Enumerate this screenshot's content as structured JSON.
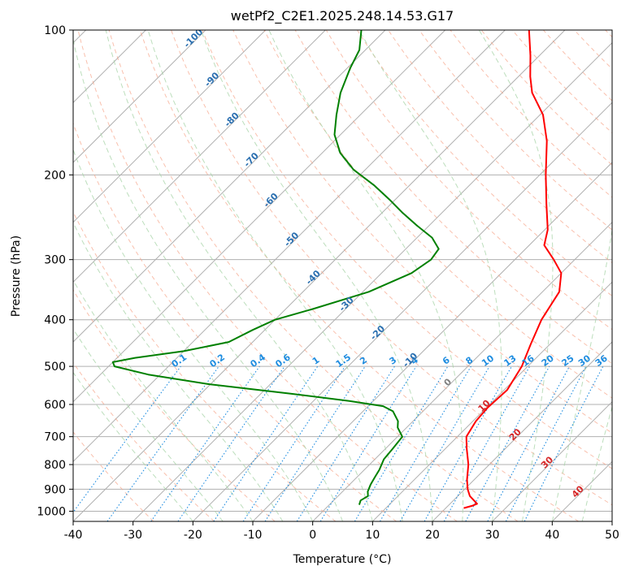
{
  "chart_data": {
    "type": "line",
    "title": "wetPf2_C2E1.2025.248.14.53.G17",
    "xlabel": "Temperature (°C)",
    "ylabel": "Pressure (hPa)",
    "xlim": [
      -40,
      50
    ],
    "ylim": [
      1050,
      100
    ],
    "y_scale": "log",
    "skew": "45° skew-T log-p",
    "grid": true,
    "x_ticks": [
      -40,
      -30,
      -20,
      -10,
      0,
      10,
      20,
      30,
      40,
      50
    ],
    "y_ticks": [
      100,
      200,
      300,
      400,
      500,
      600,
      700,
      800,
      900,
      1000
    ],
    "series": [
      {
        "color": "#ff0000",
        "points": [
          {
            "p": 985,
            "t": 23.0
          },
          {
            "p": 975,
            "t": 24.0
          },
          {
            "p": 965,
            "t": 24.5
          },
          {
            "p": 930,
            "t": 22.0
          },
          {
            "p": 900,
            "t": 20.5
          },
          {
            "p": 860,
            "t": 18.8
          },
          {
            "p": 800,
            "t": 16.5
          },
          {
            "p": 740,
            "t": 13.5
          },
          {
            "p": 700,
            "t": 11.5
          },
          {
            "p": 650,
            "t": 10.5
          },
          {
            "p": 610,
            "t": 10.2
          },
          {
            "p": 560,
            "t": 10.5
          },
          {
            "p": 500,
            "t": 9.0
          },
          {
            "p": 450,
            "t": 6.8
          },
          {
            "p": 400,
            "t": 4.5
          },
          {
            "p": 350,
            "t": 2.8
          },
          {
            "p": 320,
            "t": 0.0
          },
          {
            "p": 300,
            "t": -3.5
          },
          {
            "p": 280,
            "t": -7.5
          },
          {
            "p": 260,
            "t": -9.5
          },
          {
            "p": 230,
            "t": -14.0
          },
          {
            "p": 200,
            "t": -19.0
          },
          {
            "p": 170,
            "t": -24.5
          },
          {
            "p": 150,
            "t": -29.5
          },
          {
            "p": 135,
            "t": -35.0
          },
          {
            "p": 125,
            "t": -38.0
          },
          {
            "p": 113,
            "t": -41.5
          },
          {
            "p": 100,
            "t": -46.0
          }
        ]
      },
      {
        "color": "#008000",
        "points": [
          {
            "p": 970,
            "t": 5.0
          },
          {
            "p": 950,
            "t": 4.5
          },
          {
            "p": 930,
            "t": 5.0
          },
          {
            "p": 910,
            "t": 4.2
          },
          {
            "p": 880,
            "t": 3.5
          },
          {
            "p": 850,
            "t": 3.0
          },
          {
            "p": 820,
            "t": 2.5
          },
          {
            "p": 780,
            "t": 1.5
          },
          {
            "p": 740,
            "t": 1.2
          },
          {
            "p": 700,
            "t": 0.8
          },
          {
            "p": 670,
            "t": -1.5
          },
          {
            "p": 650,
            "t": -2.5
          },
          {
            "p": 620,
            "t": -5.0
          },
          {
            "p": 605,
            "t": -7.5
          },
          {
            "p": 590,
            "t": -14.0
          },
          {
            "p": 570,
            "t": -25.0
          },
          {
            "p": 545,
            "t": -40.0
          },
          {
            "p": 520,
            "t": -52.0
          },
          {
            "p": 500,
            "t": -59.0
          },
          {
            "p": 490,
            "t": -60.0
          },
          {
            "p": 480,
            "t": -57.0
          },
          {
            "p": 465,
            "t": -50.0
          },
          {
            "p": 445,
            "t": -44.0
          },
          {
            "p": 420,
            "t": -42.0
          },
          {
            "p": 400,
            "t": -40.0
          },
          {
            "p": 380,
            "t": -35.5
          },
          {
            "p": 350,
            "t": -29.0
          },
          {
            "p": 320,
            "t": -25.0
          },
          {
            "p": 300,
            "t": -24.0
          },
          {
            "p": 285,
            "t": -24.5
          },
          {
            "p": 270,
            "t": -27.5
          },
          {
            "p": 255,
            "t": -32.0
          },
          {
            "p": 240,
            "t": -36.5
          },
          {
            "p": 225,
            "t": -41.0
          },
          {
            "p": 210,
            "t": -46.0
          },
          {
            "p": 195,
            "t": -52.0
          },
          {
            "p": 180,
            "t": -57.0
          },
          {
            "p": 165,
            "t": -61.0
          },
          {
            "p": 150,
            "t": -64.0
          },
          {
            "p": 135,
            "t": -67.0
          },
          {
            "p": 120,
            "t": -69.5
          },
          {
            "p": 110,
            "t": -71.0
          },
          {
            "p": 100,
            "t": -74.0
          }
        ]
      }
    ],
    "dry_adiabat_labels": [
      "-100",
      "-90",
      "-80",
      "-70",
      "-60",
      "-50",
      "-40",
      "-30",
      "-20",
      "-10",
      "0"
    ],
    "moist_adiabat_labels": [
      "10",
      "20",
      "30",
      "40"
    ],
    "mixing_ratio_labels": [
      "0.1",
      "0.2",
      "0.4",
      "0.6",
      "1",
      "1.5",
      "2",
      "3",
      "4",
      "6",
      "8",
      "10",
      "13",
      "16",
      "20",
      "25",
      "30",
      "36"
    ]
  }
}
